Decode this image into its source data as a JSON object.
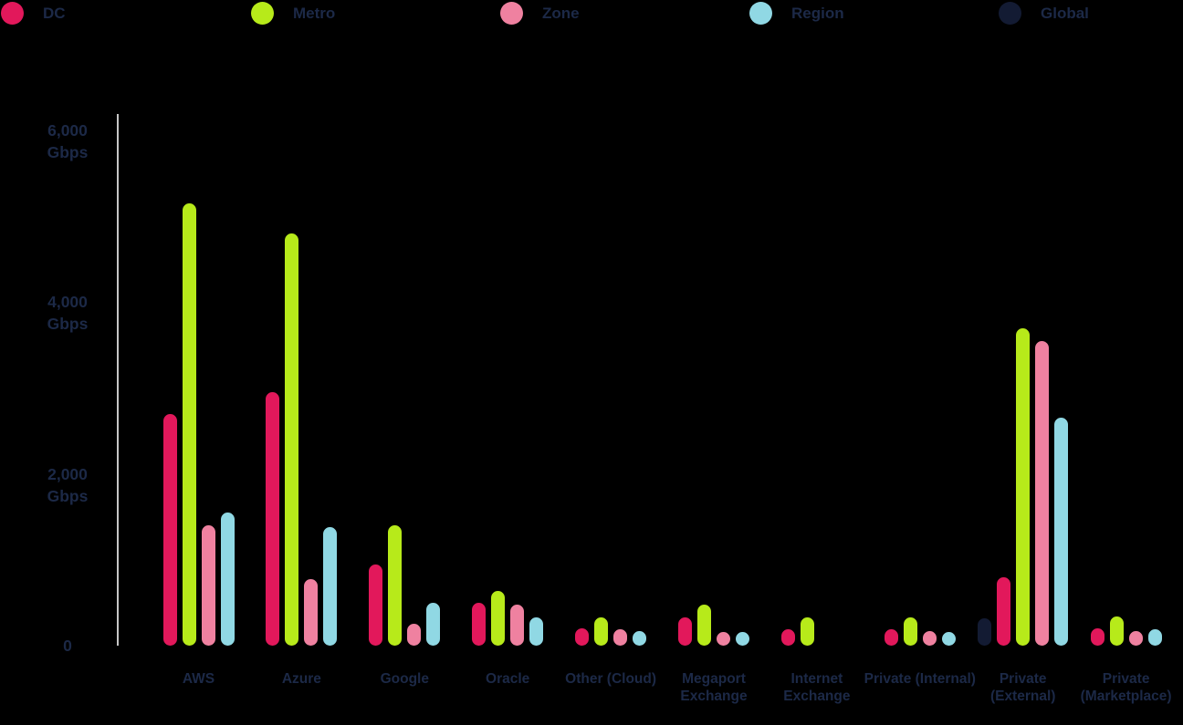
{
  "legend": {
    "items": [
      {
        "name": "DC",
        "label": "DC",
        "color": "#E2185B"
      },
      {
        "name": "Metro",
        "label": "Metro",
        "color": "#B7EA1A"
      },
      {
        "name": "Zone",
        "label": "Zone",
        "color": "#EF81A0"
      },
      {
        "name": "Region",
        "label": "Region",
        "color": "#90D8E4"
      },
      {
        "name": "Global",
        "label": "Global",
        "color": "#131B33"
      }
    ]
  },
  "y_axis": {
    "unit": "Gbps",
    "ticks": [
      {
        "value": 6000,
        "line1": "6,000",
        "line2": "Gbps"
      },
      {
        "value": 4000,
        "line1": "4,000",
        "line2": "Gbps"
      },
      {
        "value": 2000,
        "line1": "2,000",
        "line2": "Gbps"
      },
      {
        "value": 0,
        "line1": "0",
        "line2": ""
      }
    ]
  },
  "chart_data": {
    "type": "bar",
    "title": "",
    "unit": "Gbps",
    "grid": false,
    "legend_position": "top",
    "ylim": [
      0,
      6000
    ],
    "y_ticks": [
      0,
      2000,
      4000,
      6000
    ],
    "categories": [
      "AWS",
      "Azure",
      "Google",
      "Oracle",
      "Other (Cloud)",
      "Megaport Exchange",
      "Internet Exchange",
      "Private (Internal)",
      "Private (External)",
      "Private (Marketplace)"
    ],
    "category_label_lines": [
      [
        "AWS"
      ],
      [
        "Azure"
      ],
      [
        "Google"
      ],
      [
        "Oracle"
      ],
      [
        "Other (Cloud)"
      ],
      [
        "Megaport",
        "Exchange"
      ],
      [
        "Internet",
        "Exchange"
      ],
      [
        "Private (Internal)"
      ],
      [
        "Private",
        "(External)"
      ],
      [
        "Private",
        "(Marketplace)"
      ]
    ],
    "series": [
      {
        "name": "DC",
        "color": "#E2185B",
        "values": [
          2700,
          2950,
          950,
          500,
          200,
          330,
          190,
          190,
          800,
          200
        ]
      },
      {
        "name": "Metro",
        "color": "#B7EA1A",
        "values": [
          5150,
          4800,
          1400,
          640,
          330,
          480,
          330,
          330,
          3700,
          340
        ]
      },
      {
        "name": "Zone",
        "color": "#EF81A0",
        "values": [
          1400,
          780,
          250,
          480,
          190,
          160,
          null,
          170,
          3550,
          170
        ]
      },
      {
        "name": "Region",
        "color": "#90D8E4",
        "values": [
          1550,
          1380,
          500,
          330,
          170,
          150,
          null,
          160,
          2650,
          190
        ]
      },
      {
        "name": "Global",
        "color": "#131B33",
        "values": [
          null,
          null,
          null,
          null,
          null,
          null,
          null,
          null,
          320,
          null
        ]
      }
    ],
    "series_render_order": [
      "Global",
      "DC",
      "Metro",
      "Zone",
      "Region"
    ]
  }
}
